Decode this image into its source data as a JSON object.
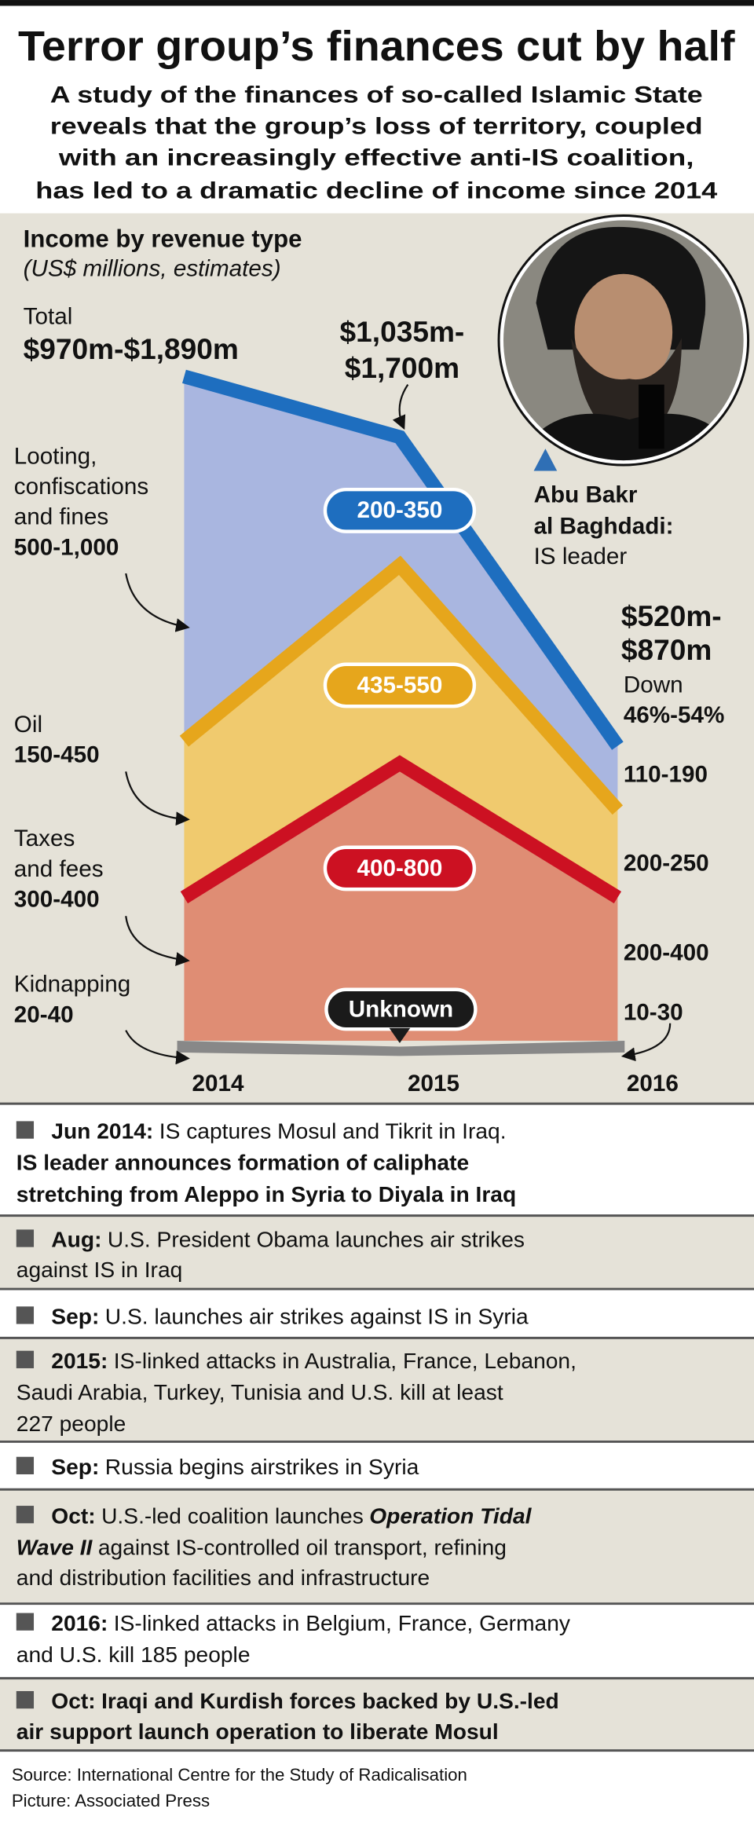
{
  "header": {
    "title": "Terror group’s finances cut by half",
    "subtitle": [
      "A study of the finances of so-called Islamic State",
      "reveals that the group’s loss of territory, coupled",
      "with an increasingly effective anti-IS coalition,",
      "has led to a dramatic decline of income since 2014"
    ]
  },
  "chart": {
    "heading": "Income by revenue type",
    "note": "(US$ millions, estimates)",
    "total_label": "Total",
    "total_2014": "$970m-$1,890m",
    "total_2015": [
      "$1,035m-",
      "$1,700m"
    ],
    "total_2016": [
      "$520m-",
      "$870m"
    ],
    "change": [
      "Down",
      "46%-54%"
    ],
    "leader": [
      "Abu Bakr",
      "al Baghdadi:",
      "IS leader"
    ],
    "years": [
      "2014",
      "2015",
      "2016"
    ],
    "categories": [
      {
        "name": [
          "Looting,",
          "confiscations",
          "and fines"
        ],
        "value_2014": "500-1,000",
        "value_2015": "200-350",
        "value_2016": "110-190"
      },
      {
        "name": [
          "Oil"
        ],
        "value_2014": "150-450",
        "value_2015": "435-550",
        "value_2016": "200-250"
      },
      {
        "name": [
          "Taxes",
          "and fees"
        ],
        "value_2014": "300-400",
        "value_2015": "400-800",
        "value_2016": "200-400"
      },
      {
        "name": [
          "Kidnapping"
        ],
        "value_2014": "20-40",
        "value_2015": "Unknown",
        "value_2016": "10-30"
      }
    ]
  },
  "timeline": [
    {
      "date": "Jun 2014:",
      "lines": [
        "IS captures Mosul and Tikrit in Iraq.",
        "IS leader announces formation of caliphate",
        "stretching from Aleppo in Syria to Diyala in Iraq"
      ]
    },
    {
      "date": "Aug:",
      "lines": [
        "U.S. President Obama launches air strikes",
        "against IS in Iraq"
      ]
    },
    {
      "date": "Sep:",
      "lines": [
        "U.S. launches air strikes against IS in Syria"
      ]
    },
    {
      "date": "2015:",
      "lines": [
        "IS-linked attacks in Australia, France, Lebanon,",
        "Saudi Arabia, Turkey, Tunisia and U.S. kill at least",
        "227 people"
      ]
    },
    {
      "date": "Sep:",
      "lines": [
        "Russia begins airstrikes in Syria"
      ]
    },
    {
      "date": "Oct:",
      "lines": [
        "U.S.-led coalition launches",
        "Operation Tidal",
        "Wave II",
        "against IS-controlled oil transport, refining",
        "and distribution facilities and infrastructure"
      ]
    },
    {
      "date": "2016:",
      "lines": [
        "IS-linked attacks in Belgium, France, Germany",
        "and U.S. kill 185 people"
      ]
    },
    {
      "date": "Oct:",
      "lines": [
        "Iraqi and Kurdish forces backed by U.S.-led",
        "air support launch operation to liberate Mosul"
      ]
    }
  ],
  "footer": [
    "Source: International Centre for the Study of Radicalisation",
    "Picture: Associated Press"
  ]
}
